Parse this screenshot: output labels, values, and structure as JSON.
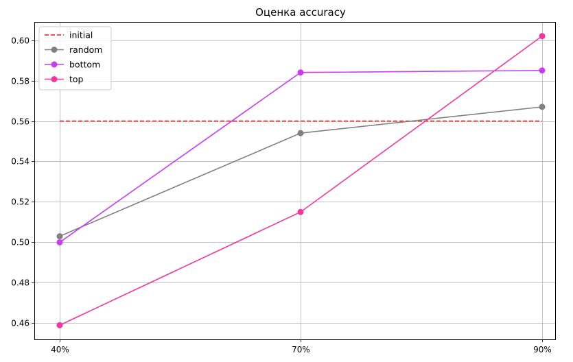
{
  "chart_data": {
    "type": "line",
    "title": "Оценка accuracy",
    "xlabel": "",
    "ylabel": "",
    "categories": [
      "40%",
      "70%",
      "90%"
    ],
    "ylim": [
      0.452,
      0.609
    ],
    "yticks": [
      0.46,
      0.48,
      0.5,
      0.52,
      0.54,
      0.56,
      0.58,
      0.6
    ],
    "ytick_labels": [
      "0.46",
      "0.48",
      "0.50",
      "0.52",
      "0.54",
      "0.56",
      "0.58",
      "0.60"
    ],
    "grid": true,
    "legend_position": "top-left",
    "series": [
      {
        "name": "initial",
        "values": [
          0.56,
          0.56,
          0.56
        ],
        "color": "#e41a1c",
        "style": "dashed",
        "markers": false
      },
      {
        "name": "random",
        "values": [
          0.503,
          0.554,
          0.567
        ],
        "color": "#808080",
        "style": "solid",
        "markers": true
      },
      {
        "name": "bottom",
        "values": [
          0.5,
          0.584,
          0.585
        ],
        "color": "#c93cf5",
        "style": "solid",
        "markers": true
      },
      {
        "name": "top",
        "values": [
          0.459,
          0.515,
          0.602
        ],
        "color": "#f0399e",
        "style": "solid",
        "markers": true
      }
    ]
  }
}
